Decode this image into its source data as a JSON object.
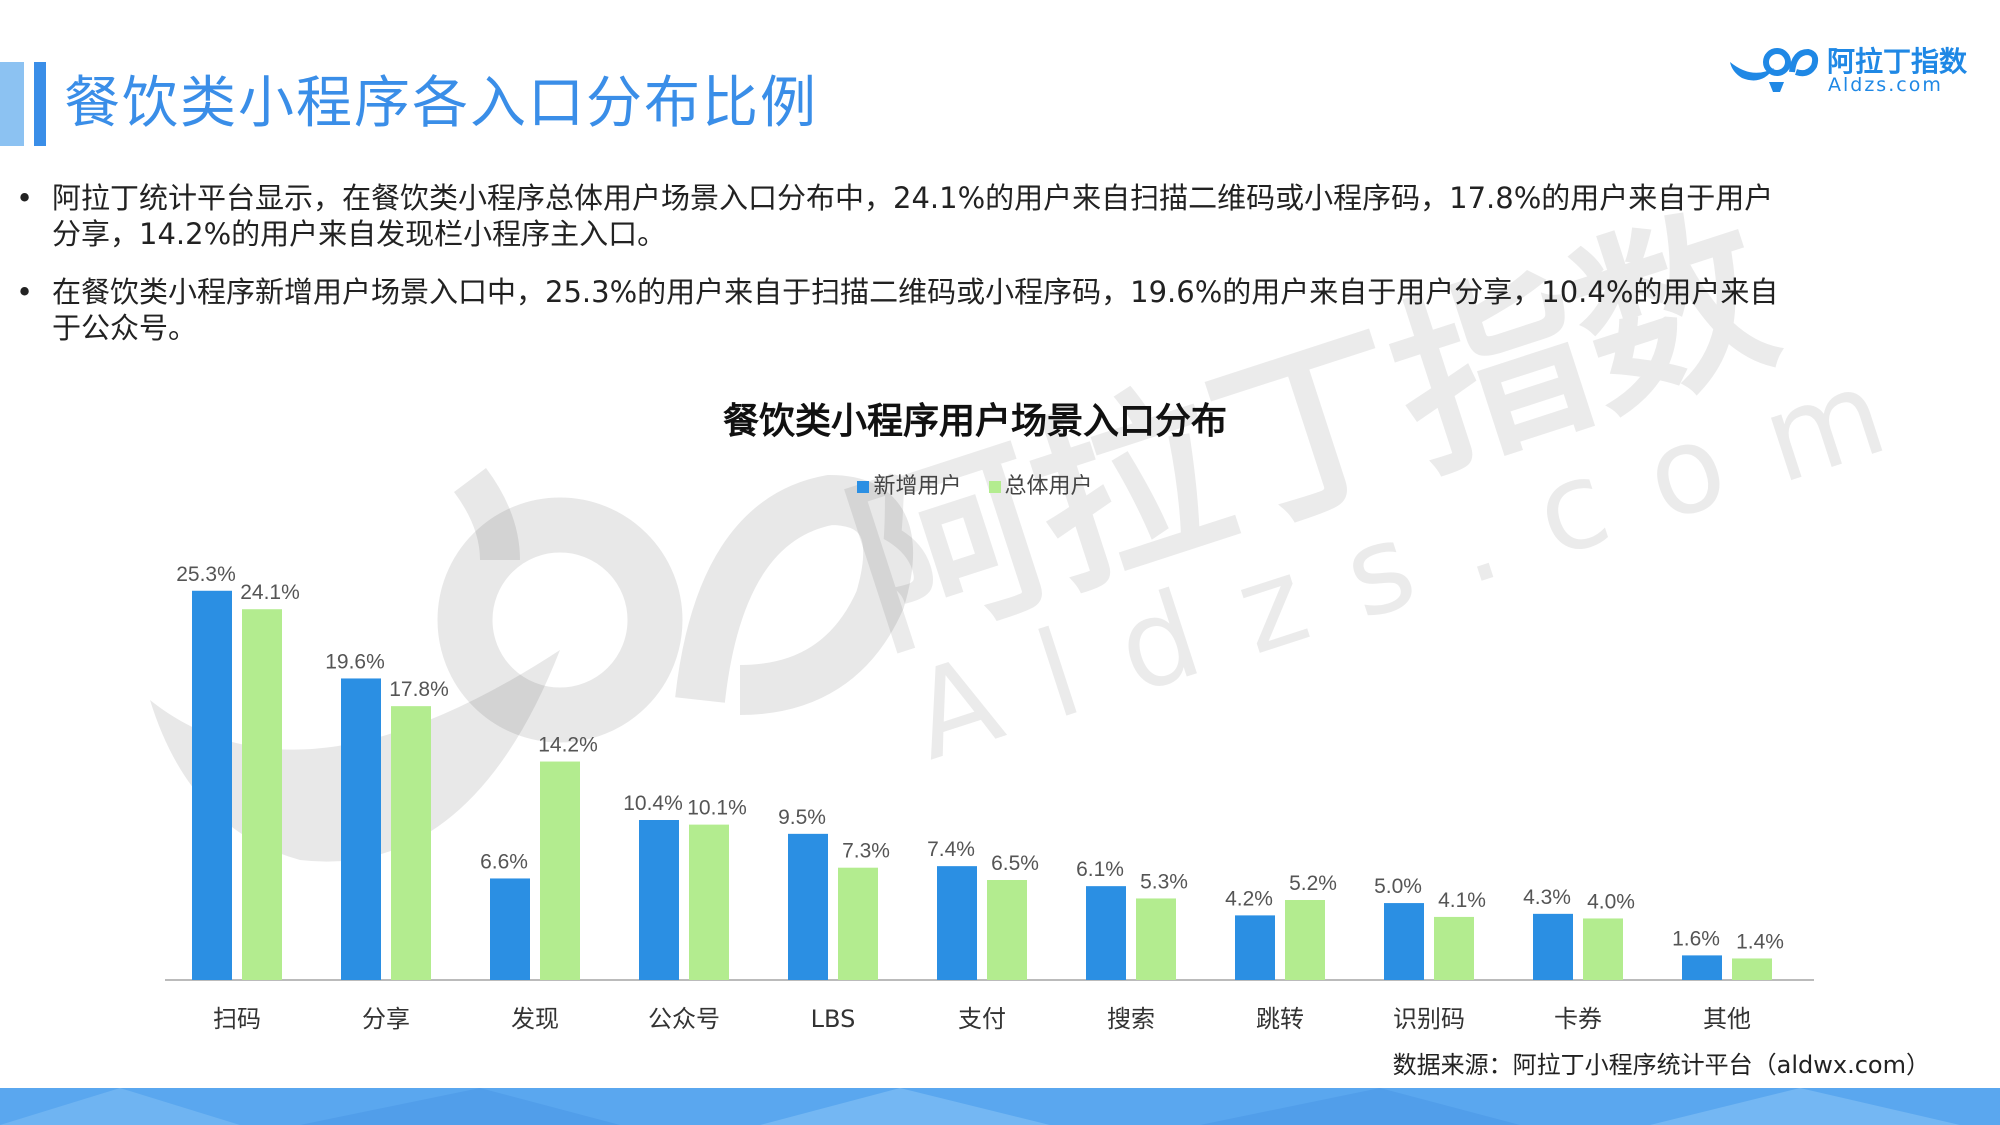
{
  "header": {
    "title": "餐饮类小程序各入口分布比例",
    "logo_text": "阿拉丁指数",
    "logo_sub": "Aldzs.com"
  },
  "bullets": [
    {
      "symbol": "•",
      "text": "阿拉丁统计平台显示，在餐饮类小程序总体用户场景入口分布中，24.1%的用户来自扫描二维码或小程序码，17.8%的用户来自于用户分享，14.2%的用户来自发现栏小程序主入口。"
    },
    {
      "symbol": "•",
      "text": "在餐饮类小程序新增用户场景入口中，25.3%的用户来自于扫描二维码或小程序码，19.6%的用户来自于用户分享，10.4%的用户来自于公众号。"
    }
  ],
  "watermark": {
    "text1": "阿拉丁指数",
    "text2": "Aldzs.com"
  },
  "chart_data": {
    "type": "bar",
    "title": "餐饮类小程序用户场景入口分布",
    "categories": [
      "扫码",
      "分享",
      "发现",
      "公众号",
      "LBS",
      "支付",
      "搜索",
      "跳转",
      "识别码",
      "卡券",
      "其他"
    ],
    "series": [
      {
        "name": "新增用户",
        "values": [
          25.3,
          19.6,
          6.6,
          10.4,
          9.5,
          7.4,
          6.1,
          4.2,
          5.0,
          4.3,
          1.6
        ],
        "labels": [
          "25.3%",
          "19.6%",
          "6.6%",
          "10.4%",
          "9.5%",
          "7.4%",
          "6.1%",
          "4.2%",
          "5.0%",
          "4.3%",
          "1.6%"
        ],
        "color": "#2b8fe3"
      },
      {
        "name": "总体用户",
        "values": [
          24.1,
          17.8,
          14.2,
          10.1,
          7.3,
          6.5,
          5.3,
          5.2,
          4.1,
          4.0,
          1.4
        ],
        "labels": [
          "24.1%",
          "17.8%",
          "14.2%",
          "10.1%",
          "7.3%",
          "6.5%",
          "5.3%",
          "5.2%",
          "4.1%",
          "4.0%",
          "1.4%"
        ],
        "color": "#b3ec8f"
      }
    ],
    "legend_position": "top-center",
    "ylim": [
      0,
      26
    ],
    "grid": false
  },
  "source": "数据来源：阿拉丁小程序统计平台（aldwx.com）",
  "colors": {
    "accent": "#3a8ee8",
    "accent_light": "#8cc2f2",
    "footer": "#5aa7ef"
  }
}
